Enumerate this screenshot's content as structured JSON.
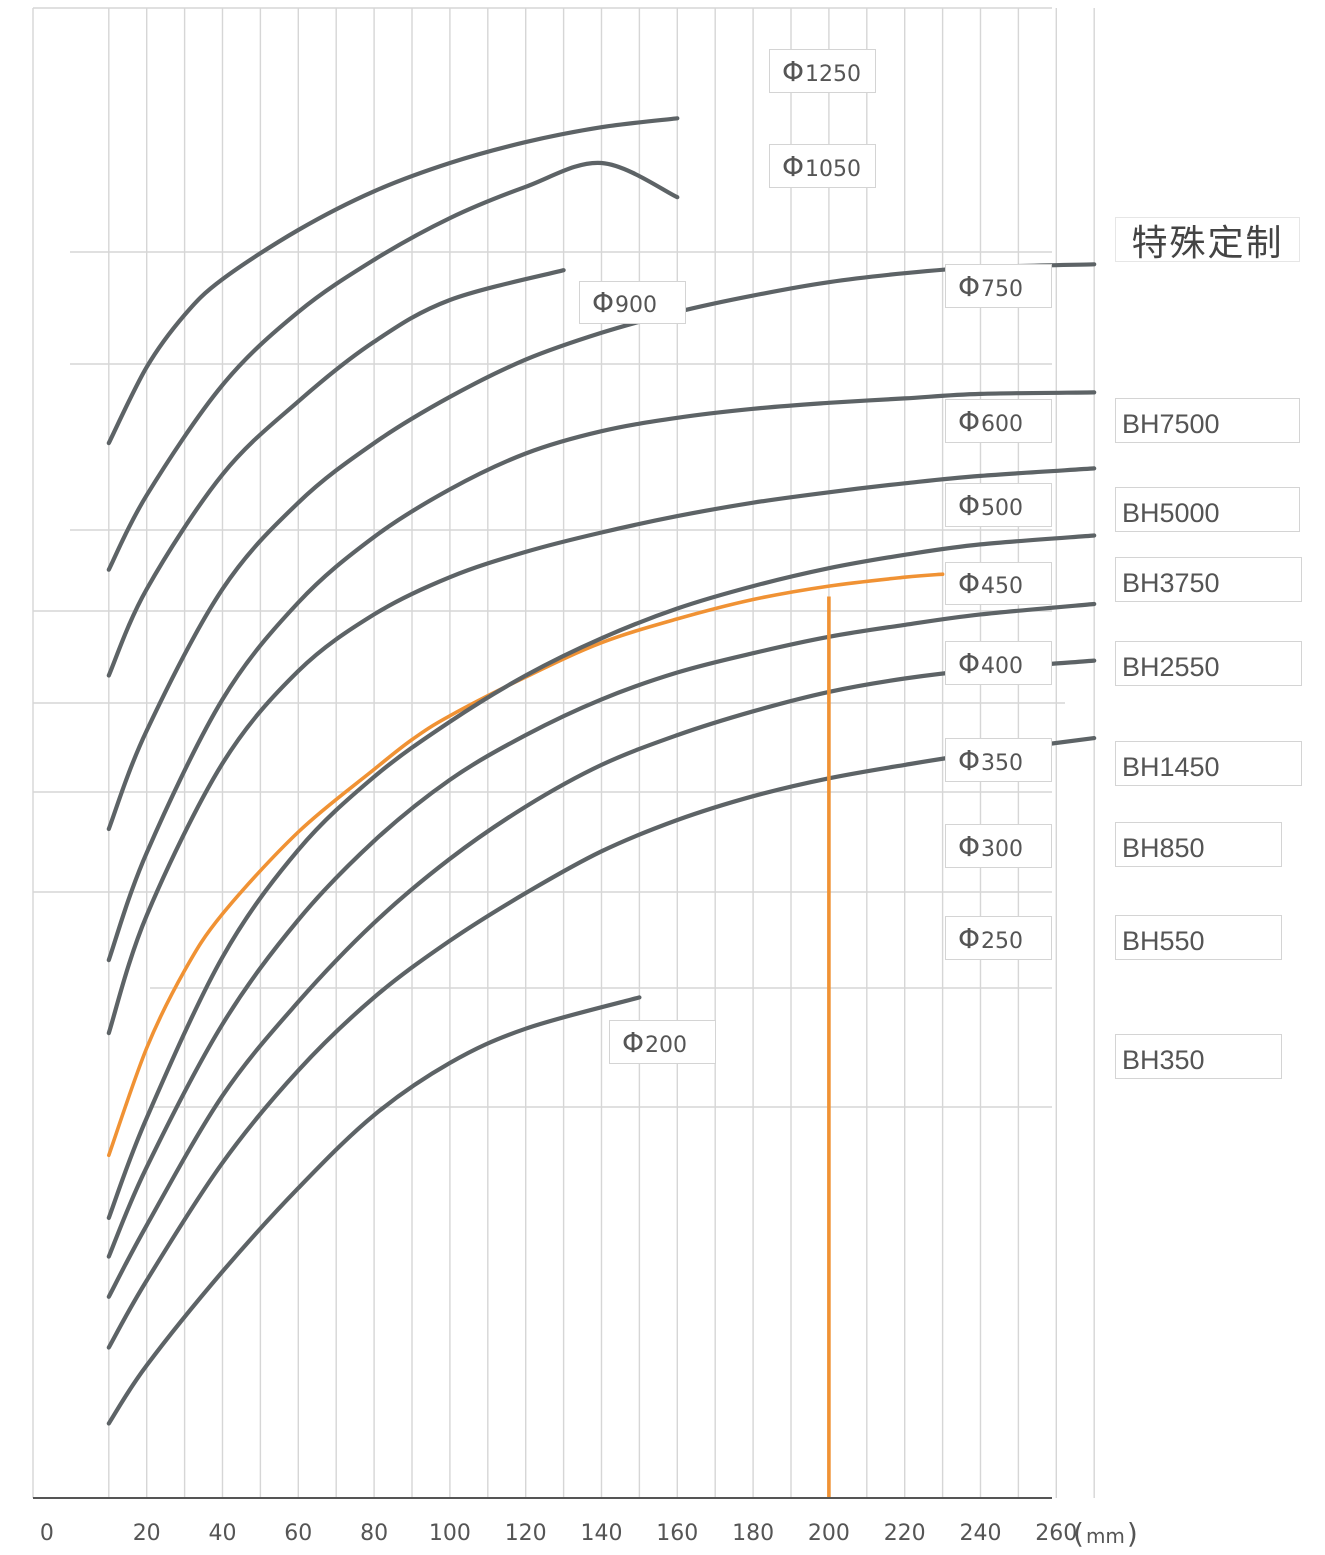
{
  "chart_data": {
    "type": "line",
    "title": "",
    "xlabel": "",
    "ylabel": "",
    "unit_bracket_open": "(",
    "unit_text": "mm",
    "unit_bracket_close": ")",
    "xlim": [
      -10,
      270
    ],
    "ylim": [
      0,
      100
    ],
    "x_ticks": [
      0,
      20,
      40,
      60,
      80,
      100,
      120,
      140,
      160,
      180,
      200,
      220,
      240,
      260
    ],
    "x_tick_labels": [
      "0",
      "20",
      "40",
      "60",
      "80",
      "100",
      "120",
      "140",
      "160",
      "180",
      "200",
      "220",
      "240",
      "260"
    ],
    "grid": true,
    "y_ticks": false,
    "colors": {
      "curve": "#5d6366",
      "highlight": "#f09234",
      "grid": "#d6d6d6",
      "axis": "#555555"
    },
    "highlight_series": "Φ400",
    "marker_x": 200,
    "marker_y_top": 60.5,
    "custom_label": "特殊定制",
    "series": [
      {
        "name": "Φ1250",
        "x": [
          10,
          20,
          30,
          40,
          60,
          80,
          100,
          120,
          140,
          160
        ],
        "y": [
          70.8,
          75.9,
          79.4,
          81.8,
          85.1,
          87.7,
          89.6,
          91.0,
          92.0,
          92.6
        ]
      },
      {
        "name": "Φ1050",
        "x": [
          10,
          20,
          40,
          60,
          80,
          100,
          120,
          140,
          160
        ],
        "y": [
          62.3,
          67.3,
          74.7,
          79.6,
          83.1,
          85.9,
          88.0,
          89.6,
          87.3
        ]
      },
      {
        "name": "Φ900",
        "x": [
          10,
          20,
          40,
          60,
          80,
          100,
          130
        ],
        "y": [
          55.2,
          61.0,
          68.7,
          73.6,
          77.6,
          80.4,
          82.4
        ]
      },
      {
        "name": "Φ750",
        "x": [
          10,
          20,
          40,
          60,
          80,
          100,
          120,
          140,
          160,
          180,
          200,
          220,
          240,
          270
        ],
        "y": [
          44.9,
          51.5,
          61.0,
          66.8,
          70.8,
          73.9,
          76.4,
          78.2,
          79.6,
          80.7,
          81.6,
          82.2,
          82.6,
          82.8
        ]
      },
      {
        "name": "Φ600",
        "x": [
          10,
          20,
          40,
          60,
          80,
          100,
          120,
          140,
          160,
          180,
          200,
          220,
          240,
          270
        ],
        "y": [
          36.1,
          43.3,
          53.6,
          60.1,
          64.5,
          67.7,
          70.1,
          71.6,
          72.5,
          73.1,
          73.5,
          73.8,
          74.1,
          74.2
        ]
      },
      {
        "name": "Φ500",
        "x": [
          10,
          20,
          40,
          60,
          80,
          100,
          120,
          140,
          160,
          180,
          200,
          220,
          240,
          270
        ],
        "y": [
          31.2,
          39.1,
          49.3,
          55.5,
          59.3,
          61.8,
          63.5,
          64.8,
          65.9,
          66.8,
          67.5,
          68.1,
          68.6,
          69.1
        ]
      },
      {
        "name": "Φ450",
        "x": [
          10,
          20,
          30,
          40,
          60,
          80,
          90,
          100,
          120,
          140,
          160,
          180,
          200,
          220,
          230
        ],
        "y": [
          23.0,
          30.2,
          35.4,
          39.2,
          44.7,
          48.9,
          50.9,
          52.5,
          55.1,
          57.4,
          59.0,
          60.3,
          61.2,
          61.8,
          62.0
        ]
      },
      {
        "name": "Φ400",
        "x": [
          10,
          20,
          40,
          60,
          80,
          100,
          120,
          140,
          160,
          180,
          200,
          220,
          240,
          270
        ],
        "y": [
          18.8,
          25.5,
          36.3,
          43.5,
          48.4,
          52.1,
          55.2,
          57.7,
          59.7,
          61.2,
          62.4,
          63.3,
          64.0,
          64.6
        ]
      },
      {
        "name": "Φ350",
        "x": [
          10,
          20,
          40,
          60,
          80,
          100,
          120,
          140,
          160,
          180,
          200,
          220,
          240,
          270
        ],
        "y": [
          16.2,
          22.2,
          31.8,
          38.8,
          44.1,
          48.2,
          51.2,
          53.6,
          55.4,
          56.7,
          57.8,
          58.6,
          59.3,
          60.0
        ]
      },
      {
        "name": "Φ300",
        "x": [
          10,
          20,
          40,
          60,
          80,
          100,
          120,
          140,
          160,
          180,
          200,
          220,
          240,
          270
        ],
        "y": [
          13.5,
          18.3,
          27.0,
          33.3,
          38.6,
          42.9,
          46.4,
          49.2,
          51.2,
          52.8,
          54.1,
          55.0,
          55.6,
          56.2
        ]
      },
      {
        "name": "Φ250",
        "x": [
          10,
          20,
          40,
          60,
          80,
          100,
          120,
          140,
          160,
          180,
          200,
          220,
          240,
          270
        ],
        "y": [
          10.1,
          14.6,
          22.5,
          28.7,
          33.6,
          37.4,
          40.6,
          43.4,
          45.5,
          47.1,
          48.3,
          49.2,
          50.0,
          51.0
        ]
      },
      {
        "name": "Φ200",
        "x": [
          10,
          20,
          40,
          60,
          80,
          100,
          120,
          150
        ],
        "y": [
          5.0,
          8.9,
          15.2,
          20.8,
          25.7,
          29.2,
          31.5,
          33.6
        ]
      }
    ],
    "labels_phi": [
      {
        "num": "1250",
        "series": "Φ1250"
      },
      {
        "num": "1050",
        "series": "Φ1050"
      },
      {
        "num": "900",
        "series": "Φ900"
      },
      {
        "num": "750",
        "series": "Φ750"
      },
      {
        "num": "600",
        "series": "Φ600"
      },
      {
        "num": "500",
        "series": "Φ500"
      },
      {
        "num": "450",
        "series": "Φ450"
      },
      {
        "num": "400",
        "series": "Φ400"
      },
      {
        "num": "350",
        "series": "Φ350"
      },
      {
        "num": "300",
        "series": "Φ300"
      },
      {
        "num": "250",
        "series": "Φ250"
      },
      {
        "num": "200",
        "series": "Φ200"
      }
    ],
    "phi_symbol": "Φ",
    "labels_model": [
      "BH7500",
      "BH5000",
      "BH3750",
      "BH2550",
      "BH1450",
      "BH850",
      "BH550",
      "BH350"
    ]
  }
}
